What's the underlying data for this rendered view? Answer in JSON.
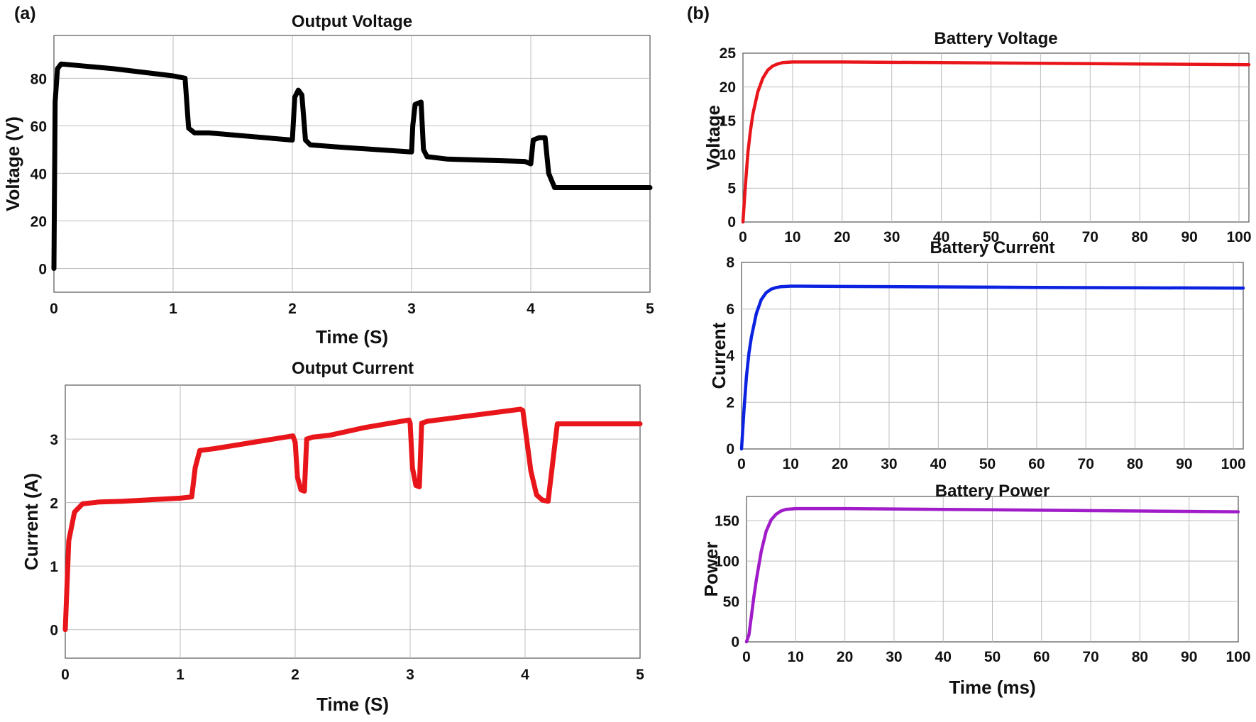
{
  "panel_labels": {
    "a": "(a)",
    "b": "(b)"
  },
  "chart_data": [
    {
      "id": "output_voltage",
      "type": "line",
      "title": "Output Voltage",
      "xlabel": "Time (S)",
      "ylabel": "Voltage (V)",
      "xlim": [
        0,
        5
      ],
      "ylim": [
        -10,
        98
      ],
      "xticks": [
        0,
        1,
        2,
        3,
        4,
        5
      ],
      "yticks": [
        0,
        20,
        40,
        60,
        80
      ],
      "grid": true,
      "color": "#000000",
      "series": [
        {
          "name": "Output Voltage",
          "x": [
            0,
            0.01,
            0.03,
            0.06,
            0.5,
            1.0,
            1.1,
            1.13,
            1.18,
            1.3,
            2.0,
            2.02,
            2.05,
            2.08,
            2.11,
            2.15,
            2.4,
            3.0,
            3.01,
            3.03,
            3.08,
            3.1,
            3.13,
            3.3,
            3.95,
            4.0,
            4.02,
            4.07,
            4.12,
            4.15,
            4.2,
            4.3,
            5.0
          ],
          "y": [
            0,
            70,
            84,
            86,
            84,
            81,
            80,
            59,
            57,
            57,
            54,
            72,
            75,
            73,
            54,
            52,
            51,
            49,
            60,
            69,
            70,
            50,
            47,
            46,
            45,
            44,
            54,
            55,
            55,
            40,
            34,
            34,
            34
          ]
        }
      ]
    },
    {
      "id": "output_current",
      "type": "line",
      "title": "Output Current",
      "xlabel": "Time (S)",
      "ylabel": "Current (A)",
      "xlim": [
        0,
        5
      ],
      "ylim": [
        -0.45,
        3.85
      ],
      "xticks": [
        0,
        1,
        2,
        3,
        4,
        5
      ],
      "yticks": [
        0,
        1,
        2,
        3
      ],
      "grid": true,
      "color": "#e8161b",
      "series": [
        {
          "name": "Output Current",
          "x": [
            0,
            0.03,
            0.08,
            0.15,
            0.3,
            0.5,
            1.0,
            1.1,
            1.13,
            1.17,
            1.3,
            1.98,
            2.0,
            2.02,
            2.05,
            2.08,
            2.1,
            2.15,
            2.3,
            2.6,
            2.99,
            3.0,
            3.02,
            3.05,
            3.08,
            3.1,
            3.15,
            3.96,
            3.98,
            4.05,
            4.1,
            4.15,
            4.2,
            4.28,
            5.0
          ],
          "y": [
            0,
            1.4,
            1.85,
            1.98,
            2.01,
            2.02,
            2.07,
            2.09,
            2.55,
            2.82,
            2.85,
            3.05,
            2.95,
            2.4,
            2.2,
            2.18,
            3.0,
            3.03,
            3.06,
            3.18,
            3.3,
            3.25,
            2.55,
            2.27,
            2.25,
            3.25,
            3.28,
            3.47,
            3.45,
            2.5,
            2.12,
            2.04,
            2.02,
            3.24,
            3.24
          ]
        }
      ]
    },
    {
      "id": "battery_voltage",
      "type": "line",
      "title": "Battery Voltage",
      "xlabel": "",
      "ylabel": "Voltage",
      "xlim": [
        0,
        102
      ],
      "ylim": [
        0,
        25
      ],
      "xticks": [
        0,
        10,
        20,
        30,
        40,
        50,
        60,
        70,
        80,
        90,
        100
      ],
      "yticks": [
        0,
        5,
        10,
        15,
        20,
        25
      ],
      "grid": true,
      "color": "#e8161b",
      "series": [
        {
          "name": "Battery Voltage",
          "x": [
            0,
            0.5,
            1,
            1.5,
            2,
            3,
            4,
            5,
            6,
            7,
            8,
            10,
            12,
            20,
            40,
            60,
            80,
            102
          ],
          "y": [
            0,
            5.5,
            10.3,
            13.5,
            16.0,
            19.3,
            21.3,
            22.5,
            23.1,
            23.4,
            23.6,
            23.7,
            23.7,
            23.7,
            23.6,
            23.5,
            23.4,
            23.3
          ]
        }
      ]
    },
    {
      "id": "battery_current",
      "type": "line",
      "title": "Battery Current",
      "xlabel": "",
      "ylabel": "Current",
      "xlim": [
        0,
        102
      ],
      "ylim": [
        0,
        8
      ],
      "xticks": [
        0,
        10,
        20,
        30,
        40,
        50,
        60,
        70,
        80,
        90,
        100
      ],
      "yticks": [
        0,
        2,
        4,
        6,
        8
      ],
      "grid": true,
      "color": "#0b22e0",
      "series": [
        {
          "name": "Battery Current",
          "x": [
            0,
            0.5,
            1,
            1.5,
            2,
            3,
            4,
            5,
            6,
            7,
            8,
            10,
            12,
            20,
            40,
            60,
            80,
            102
          ],
          "y": [
            0,
            1.7,
            3.1,
            4.1,
            4.8,
            5.8,
            6.4,
            6.7,
            6.85,
            6.92,
            6.96,
            6.98,
            6.98,
            6.97,
            6.95,
            6.93,
            6.91,
            6.9
          ]
        }
      ]
    },
    {
      "id": "battery_power",
      "type": "line",
      "title": "Battery Power",
      "xlabel": "Time (ms)",
      "ylabel": "Power",
      "xlim": [
        0,
        100
      ],
      "ylim": [
        0,
        180
      ],
      "xticks": [
        0,
        10,
        20,
        30,
        40,
        50,
        60,
        70,
        80,
        90,
        100
      ],
      "yticks": [
        0,
        50,
        100,
        150
      ],
      "grid": true,
      "color": "#a01cc8",
      "series": [
        {
          "name": "Battery Power",
          "x": [
            0,
            0.5,
            1,
            1.5,
            2,
            3,
            4,
            5,
            6,
            7,
            8,
            10,
            12,
            20,
            40,
            60,
            80,
            100
          ],
          "y": [
            0,
            9,
            32,
            56,
            77,
            112,
            137,
            151,
            158,
            162,
            164,
            165,
            165,
            165,
            164,
            163,
            162,
            161
          ]
        }
      ]
    }
  ]
}
